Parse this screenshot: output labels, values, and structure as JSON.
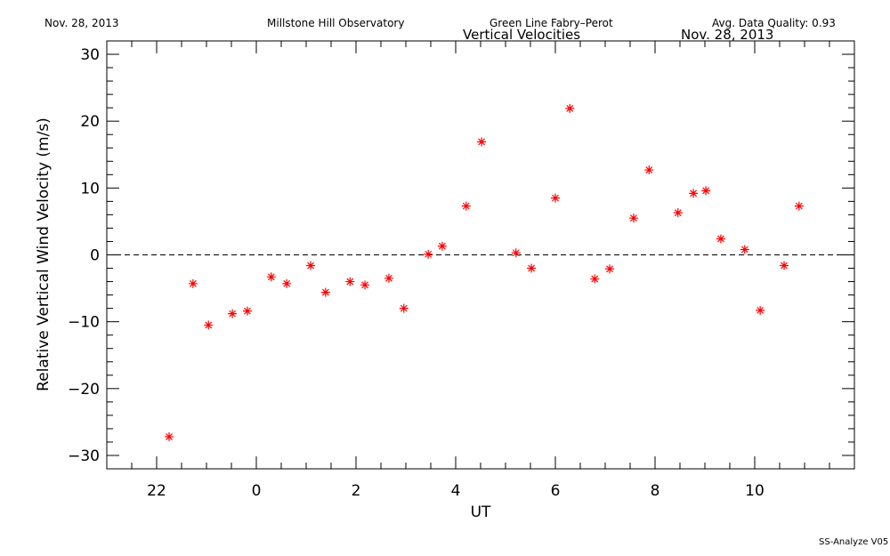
{
  "chart_data": {
    "type": "scatter",
    "header": [
      "Nov. 28, 2013",
      "Millstone Hill Observatory",
      "Green Line Fabry–Perot",
      "Avg. Data Quality: 0.93"
    ],
    "title": "Vertical Velocities",
    "subtitle": "Nov. 28, 2013",
    "footer": "SS-Analyze V05",
    "xlabel": "UT",
    "ylabel": "Relative Vertical Wind Velocity (m/s)",
    "xlim": [
      -3,
      12
    ],
    "ylim": [
      -32,
      32
    ],
    "xticks": [
      {
        "value": -2,
        "label": "22"
      },
      0,
      2,
      4,
      6,
      8,
      10
    ],
    "yticks": [
      {
        "value": -30,
        "label": "−30"
      },
      {
        "value": -20,
        "label": "−20"
      },
      {
        "value": -10,
        "label": "−10"
      },
      0,
      10,
      20,
      30
    ],
    "xminorticks": [
      -2.5,
      -1.5,
      -1,
      -0.5,
      0.5,
      1,
      1.5,
      2.5,
      3,
      3.5,
      4.5,
      5,
      5.5,
      6.5,
      7,
      7.5,
      8.5,
      9,
      9.5,
      10.5,
      11,
      11.5
    ],
    "yminorticks": [
      -28,
      -26,
      -24,
      -22,
      -18,
      -16,
      -14,
      -12,
      -8,
      -6,
      -4,
      -2,
      2,
      4,
      6,
      8,
      12,
      14,
      16,
      18,
      22,
      24,
      26,
      28
    ],
    "hline": 0,
    "series": [
      {
        "color": "#ff0000",
        "x": [
          -1.75,
          -1.27,
          -0.96,
          -0.48,
          -0.18,
          0.3,
          0.61,
          1.09,
          1.39,
          1.88,
          2.18,
          2.66,
          2.96,
          3.45,
          3.73,
          4.21,
          4.52,
          5.21,
          5.52,
          6.0,
          6.29,
          6.79,
          7.09,
          7.57,
          7.88,
          8.46,
          8.77,
          9.02,
          9.32,
          9.8,
          10.11,
          10.59,
          10.89
        ],
        "values": [
          -27.2,
          -4.3,
          -10.5,
          -8.8,
          -8.4,
          -3.3,
          -4.3,
          -1.6,
          -5.6,
          -4.0,
          -4.5,
          -3.5,
          -8.0,
          0.1,
          1.3,
          7.3,
          16.9,
          0.3,
          -2.0,
          8.5,
          21.9,
          -3.6,
          -2.1,
          5.5,
          12.7,
          6.3,
          9.2,
          9.6,
          2.4,
          0.8,
          -8.3,
          -1.6,
          7.3
        ]
      }
    ]
  }
}
